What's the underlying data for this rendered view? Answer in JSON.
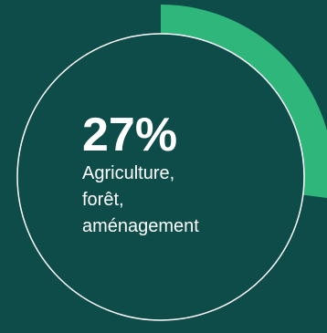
{
  "chart_data": {
    "type": "pie",
    "values": [
      27
    ],
    "value_label": "27%",
    "category_label": "Agriculture, forêt, aménagement",
    "category_lines": [
      "Agriculture,",
      "forêt,",
      "aménagement"
    ],
    "colors": {
      "background": "#0d4c49",
      "arc": "#2eb67b",
      "circle": "#ffffff",
      "text": "#ffffff"
    }
  }
}
